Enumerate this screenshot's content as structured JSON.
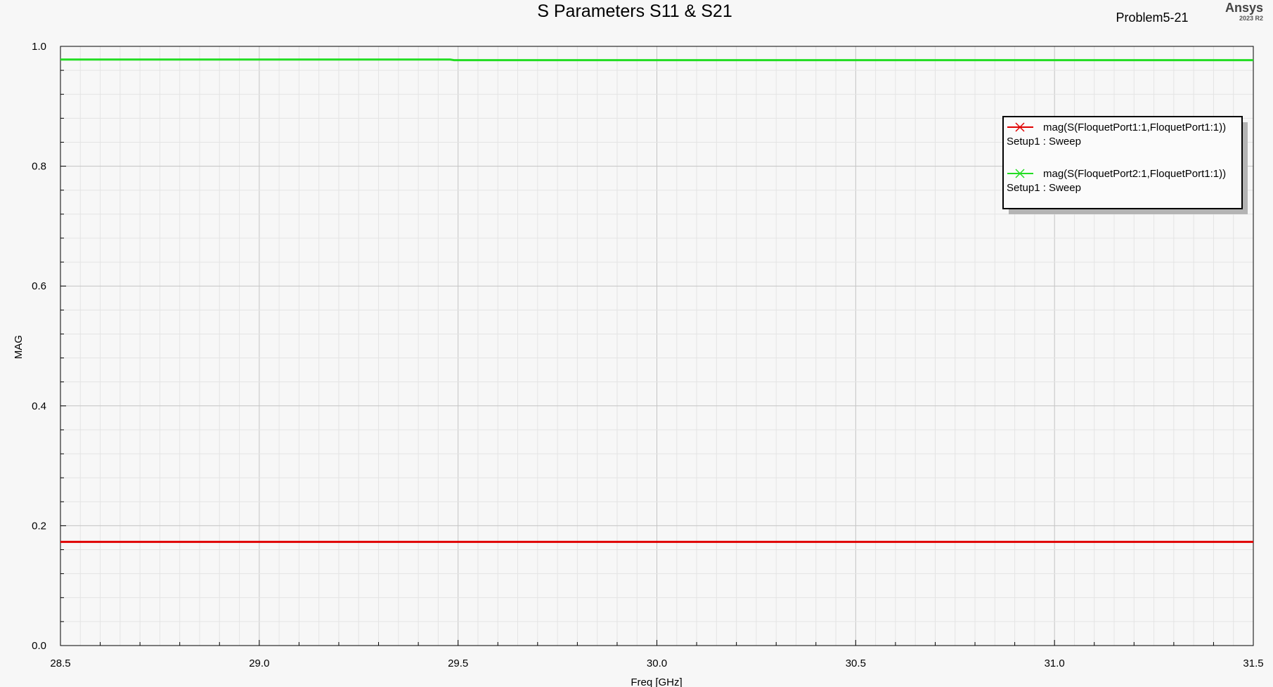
{
  "header": {
    "project_name": "Problem5-21",
    "brand": "Ansys",
    "brand_version": "2023 R2"
  },
  "chart_data": {
    "type": "line",
    "title": "S Parameters S11 & S21",
    "xlabel": "Freq [GHz]",
    "ylabel": "MAG",
    "xlim": [
      28.5,
      31.5
    ],
    "ylim": [
      0.0,
      1.0
    ],
    "x_ticks": [
      "28.5",
      "29.0",
      "29.5",
      "30.0",
      "30.5",
      "31.0",
      "31.5"
    ],
    "y_ticks": [
      "0.0",
      "0.2",
      "0.4",
      "0.6",
      "0.8",
      "1.0"
    ],
    "x_minor_step": 0.05,
    "y_minor_step": 0.04,
    "grid": true,
    "legend_position": "top-right",
    "series": [
      {
        "name": "mag(S(FloquetPort1:1,FloquetPort1:1))",
        "setup": "Setup1 : Sweep",
        "color": "#e00000",
        "x": [
          28.5,
          29.0,
          29.5,
          30.0,
          30.5,
          31.0,
          31.5
        ],
        "y": [
          0.173,
          0.173,
          0.173,
          0.173,
          0.173,
          0.173,
          0.173
        ]
      },
      {
        "name": "mag(S(FloquetPort2:1,FloquetPort1:1))",
        "setup": "Setup1 : Sweep",
        "color": "#22dd22",
        "x": [
          28.5,
          29.0,
          29.48,
          29.49,
          30.0,
          30.5,
          31.0,
          31.5
        ],
        "y": [
          0.978,
          0.978,
          0.978,
          0.977,
          0.977,
          0.977,
          0.977,
          0.977
        ]
      }
    ]
  }
}
